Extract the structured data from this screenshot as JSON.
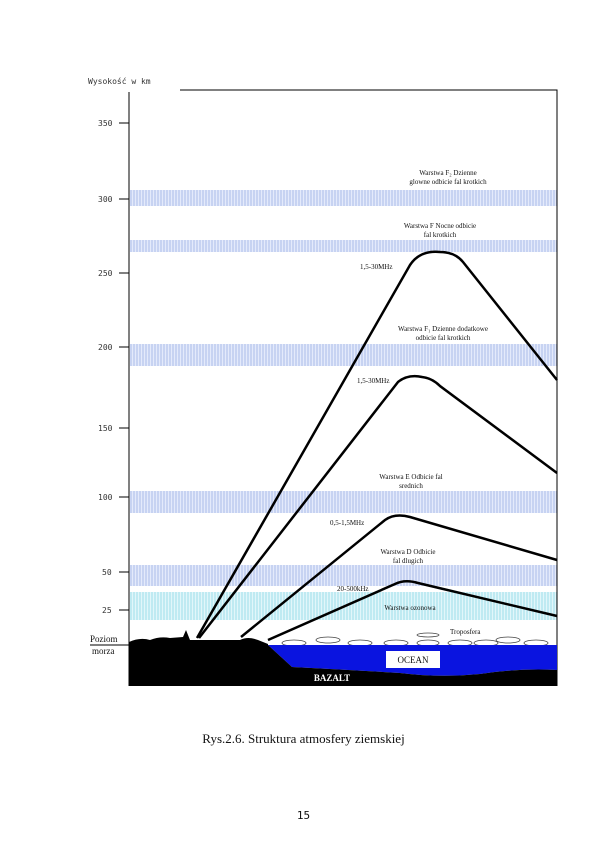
{
  "figure": {
    "y_axis_label": "Wysokość w km",
    "ticks": [
      "350",
      "300",
      "250",
      "200",
      "150",
      "100",
      "50",
      "25"
    ],
    "sea_level_label": [
      "Poziom",
      "morza"
    ],
    "layers": [
      {
        "lines": [
          "Warstwa F₂ Dzienne",
          "glowne odbicie fal krotkich"
        ]
      },
      {
        "lines": [
          "Warstwa F Nocne odbicie",
          "fal krotkich"
        ]
      },
      {
        "lines": [
          "Warstwa F₁ Dzienne dodatkowe",
          "odbicie fal  krotkich"
        ]
      },
      {
        "lines": [
          "Warstwa E Odbicie fal",
          "srednich"
        ]
      },
      {
        "lines": [
          "Warstwa D Odbicie",
          "fal dlugich"
        ]
      },
      {
        "lines": [
          "Warstwa ozonowa"
        ]
      }
    ],
    "rays": [
      "1,5-30MHz",
      "1,5-30MHz",
      "0,5-1,5MHz",
      "20-500kHz"
    ],
    "troposphere": "Troposfera",
    "ocean": "OCEAN",
    "basalt": "BAZALT",
    "colors": {
      "band": "#c7d3f2",
      "ozone": "#bfeaf2",
      "ocean": "#0a14e0"
    }
  },
  "caption": "Rys.2.6. Struktura atmosfery ziemskiej",
  "page_number": "15"
}
